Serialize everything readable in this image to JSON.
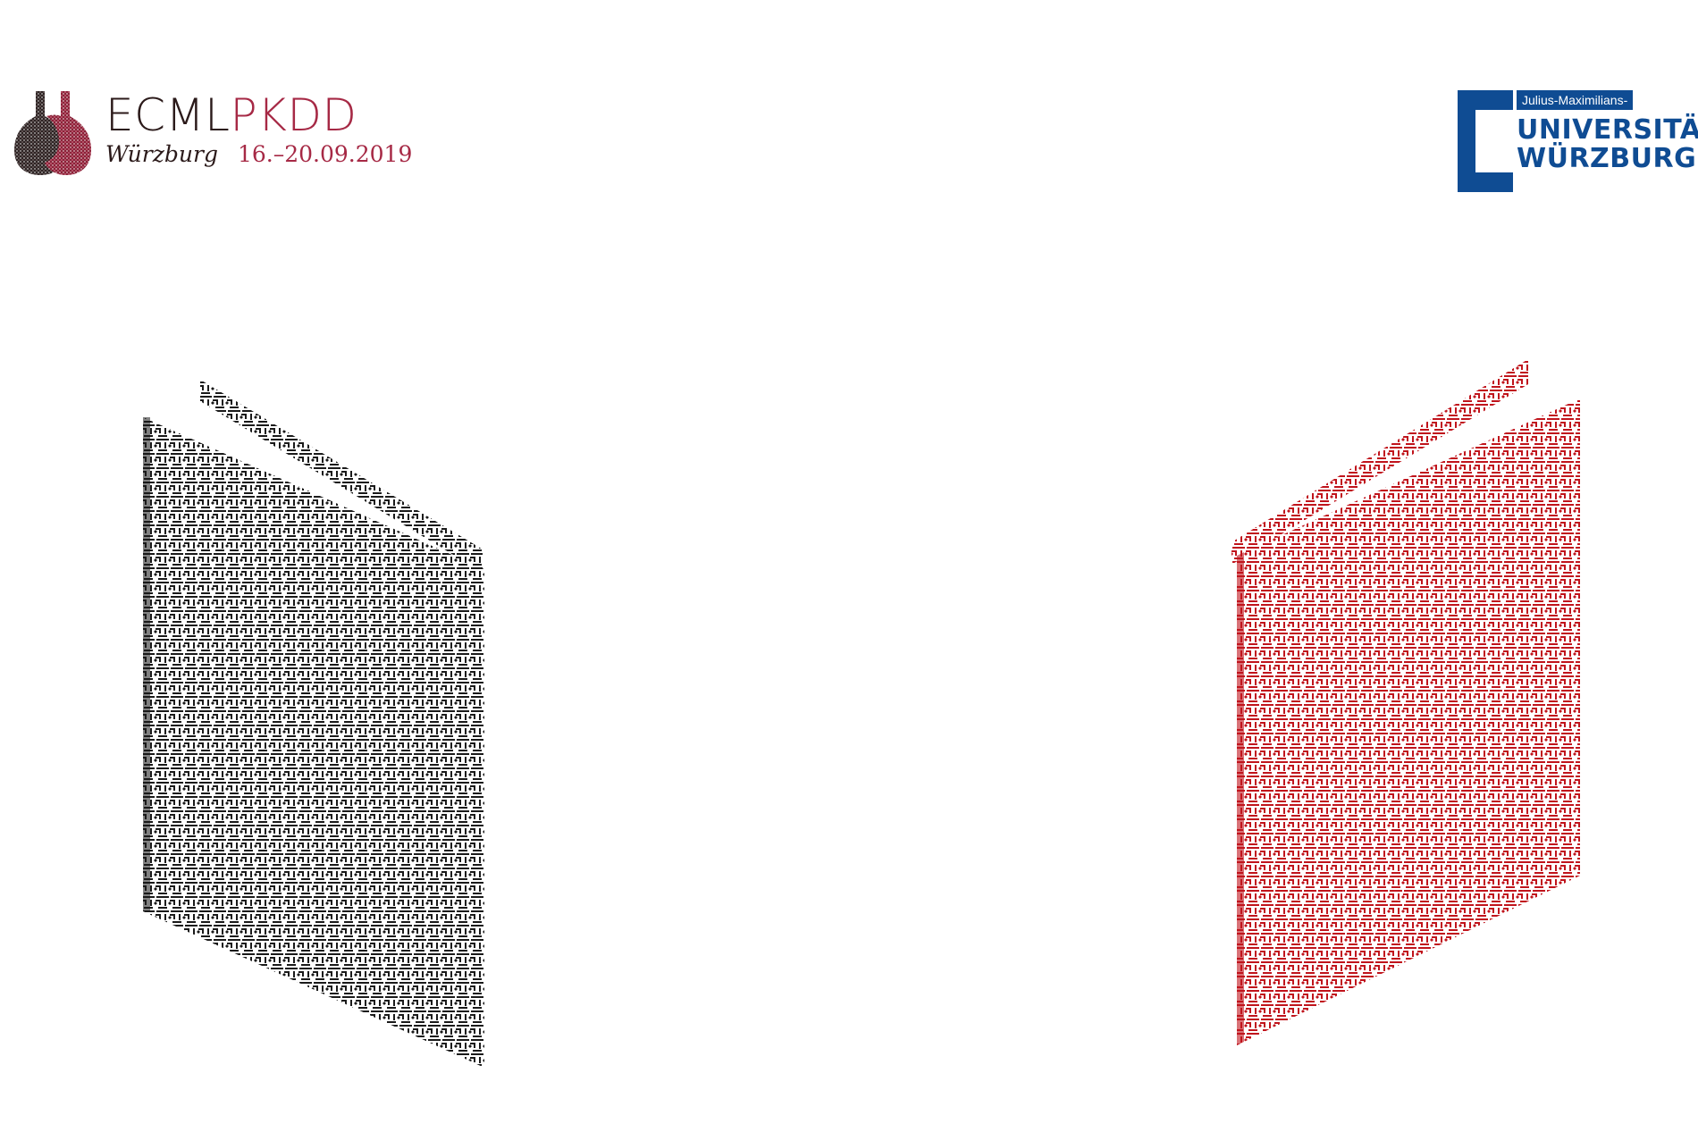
{
  "header": {
    "conference_logo": {
      "title_part_a": "ECML",
      "title_part_b": "PKDD",
      "city": "Würzburg",
      "dates": "16.–20.09.2019",
      "colors": {
        "dark": "#2b1a1a",
        "accent": "#a62945"
      },
      "icon": "wine-bottles-icon"
    },
    "university_logo": {
      "top_line": "Julius-Maximilians-",
      "line1": "UNIVERSITÄT",
      "line2": "WÜRZBURG",
      "colors": {
        "brand": "#0f4c93"
      },
      "icon": "university-bracket-icon"
    }
  },
  "illustration": {
    "left_book": {
      "icon": "patterned-book-icon",
      "color": "#1a1a1a"
    },
    "right_book": {
      "icon": "patterned-book-icon",
      "color": "#c0141c"
    }
  }
}
